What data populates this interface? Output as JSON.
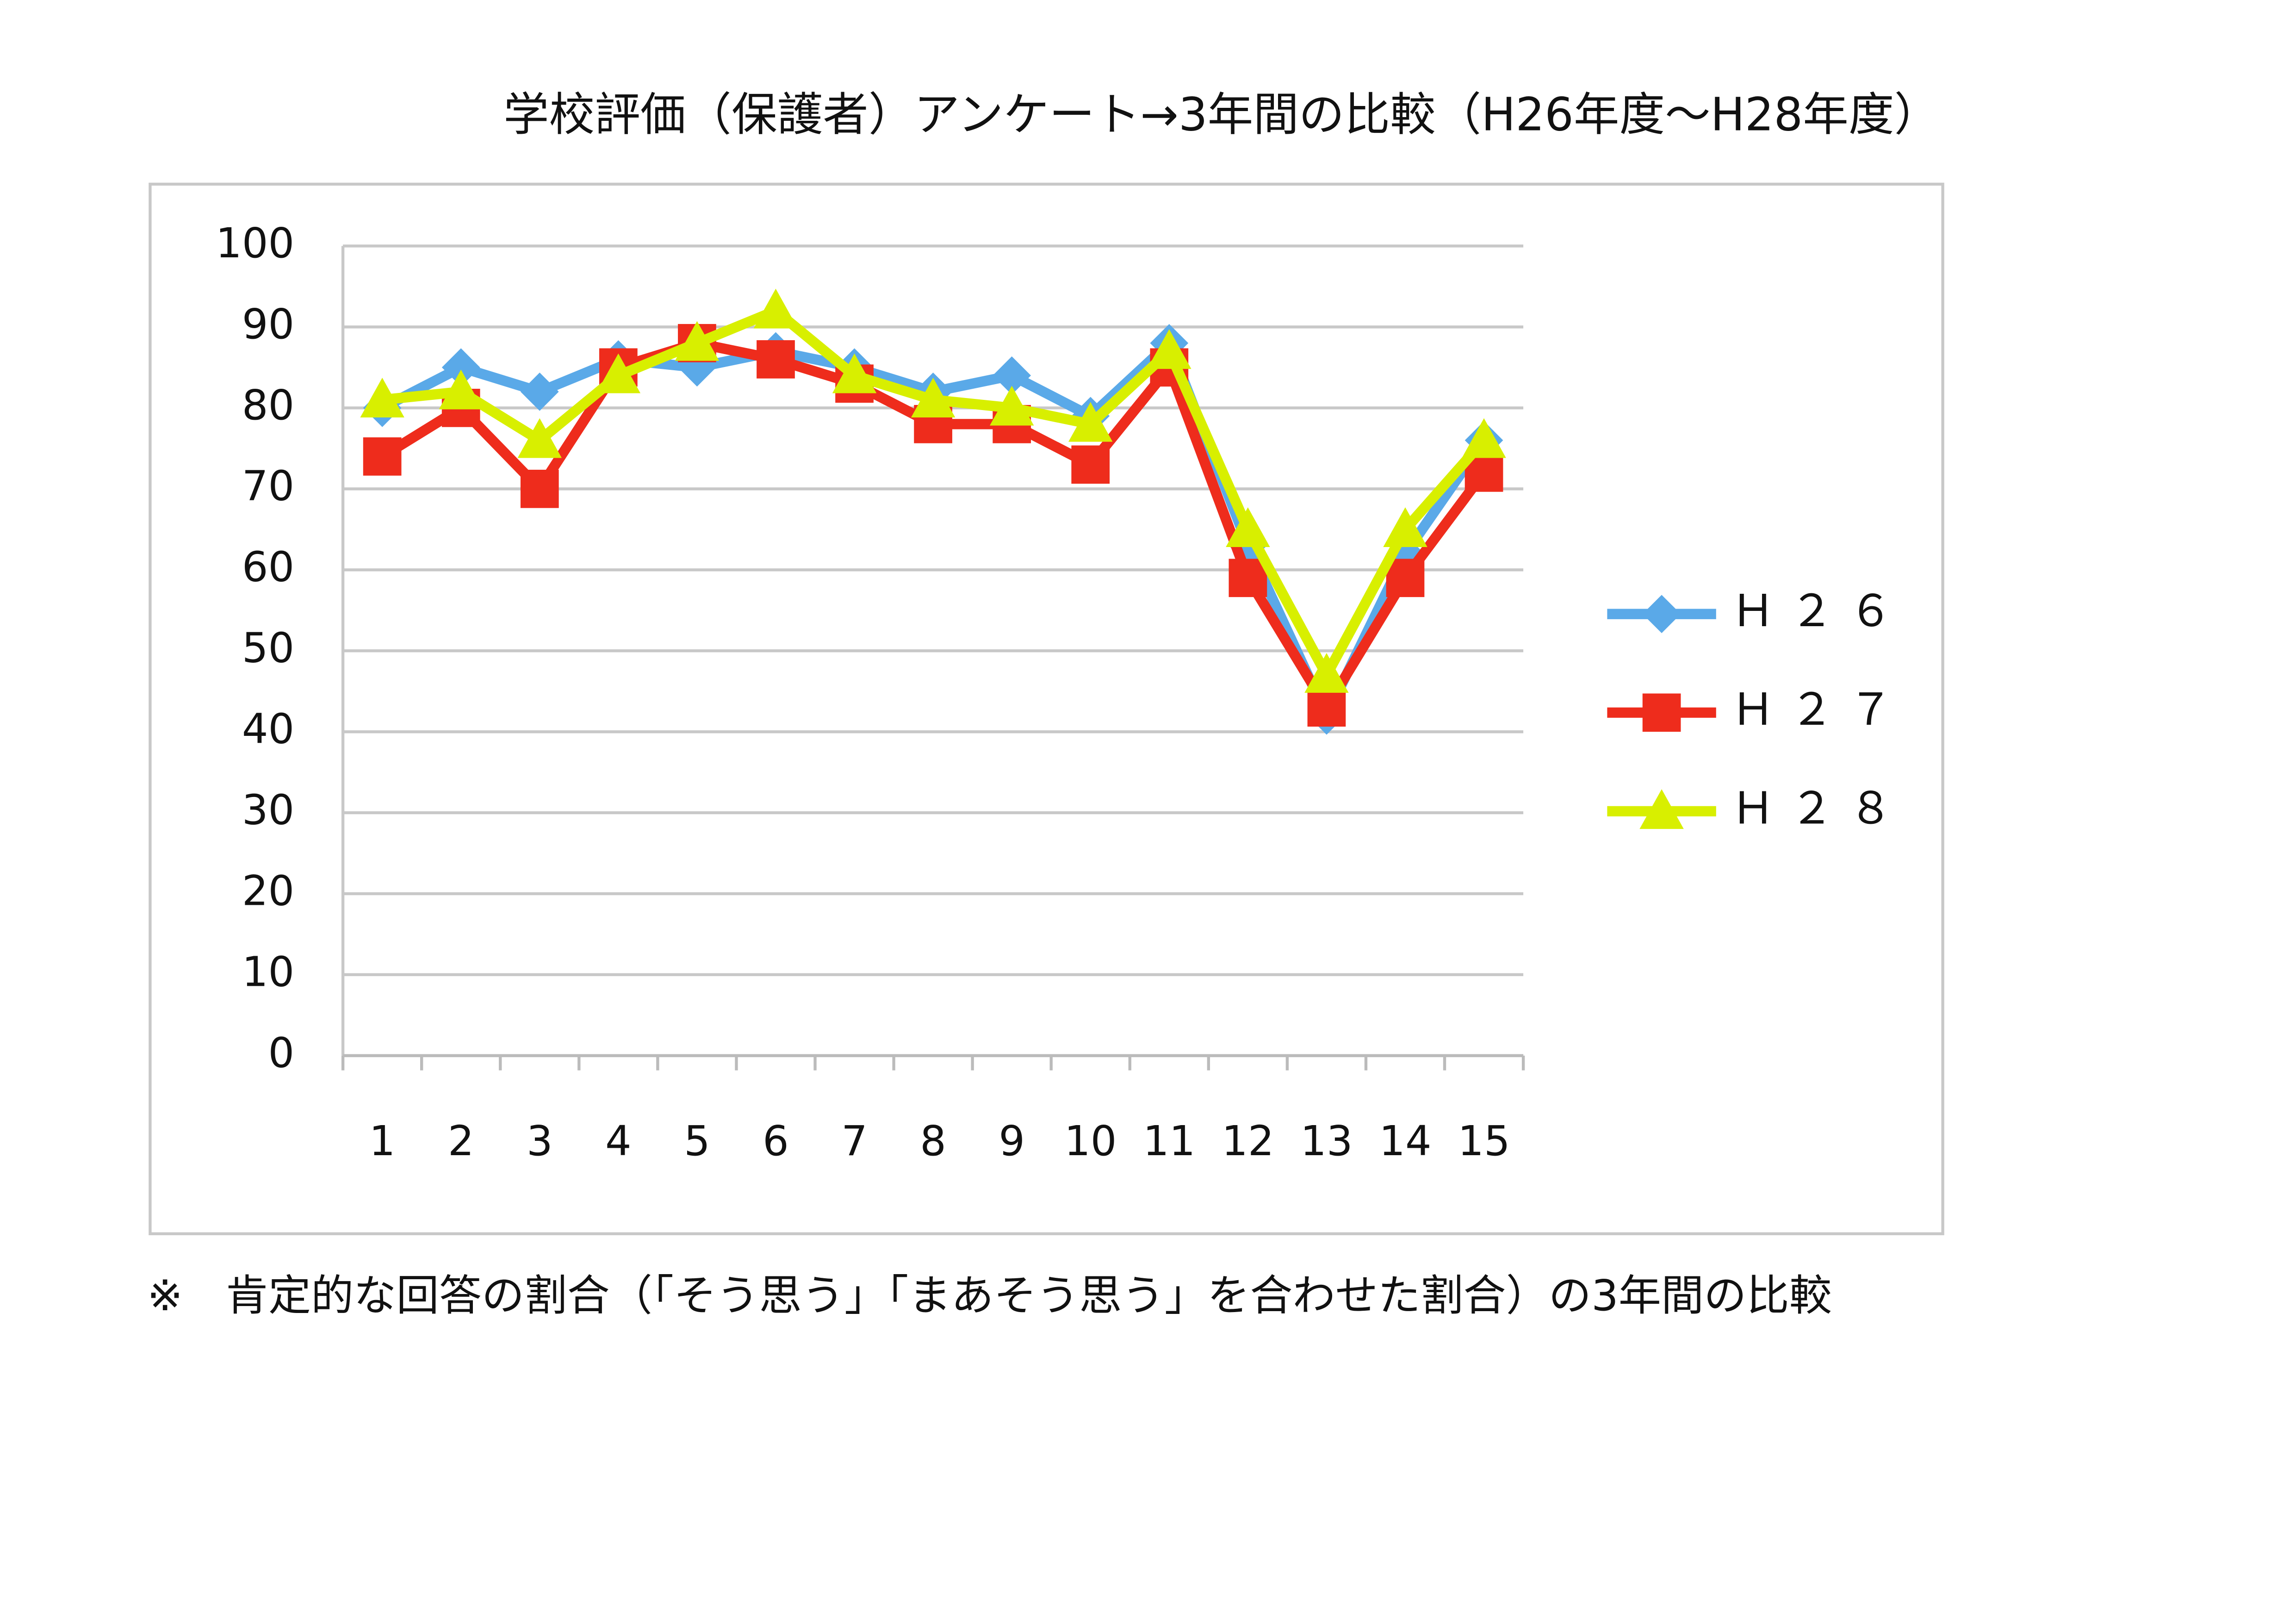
{
  "chart_data": {
    "type": "line",
    "title": "学校評価（保護者）アンケート→3年間の比較（H26年度～H28年度）",
    "note": "※　肯定的な回答の割合（「そう思う」「まあそう思う」を合わせた割合）の3年間の比較",
    "categories": [
      "1",
      "2",
      "3",
      "4",
      "5",
      "6",
      "7",
      "8",
      "9",
      "10",
      "11",
      "12",
      "13",
      "14",
      "15"
    ],
    "series": [
      {
        "name": "Ｈ２６",
        "color": "#5aa9e8",
        "marker": "diamond",
        "values": [
          80,
          85,
          82,
          86,
          85,
          87,
          85,
          82,
          84,
          79,
          88,
          63,
          42,
          62,
          76
        ]
      },
      {
        "name": "Ｈ２７",
        "color": "#ee2c1c",
        "marker": "square",
        "values": [
          74,
          80,
          70,
          85,
          88,
          86,
          83,
          78,
          78,
          73,
          85,
          59,
          43,
          59,
          72
        ]
      },
      {
        "name": "Ｈ２８",
        "color": "#d8ef00",
        "marker": "triangle",
        "values": [
          81,
          82,
          76,
          84,
          88,
          92,
          84,
          81,
          80,
          78,
          87,
          65,
          47,
          65,
          76
        ]
      }
    ],
    "ylim": [
      0,
      100
    ],
    "yticks": [
      0,
      10,
      20,
      30,
      40,
      50,
      60,
      70,
      80,
      90,
      100
    ],
    "grid": true,
    "legend": "right"
  }
}
